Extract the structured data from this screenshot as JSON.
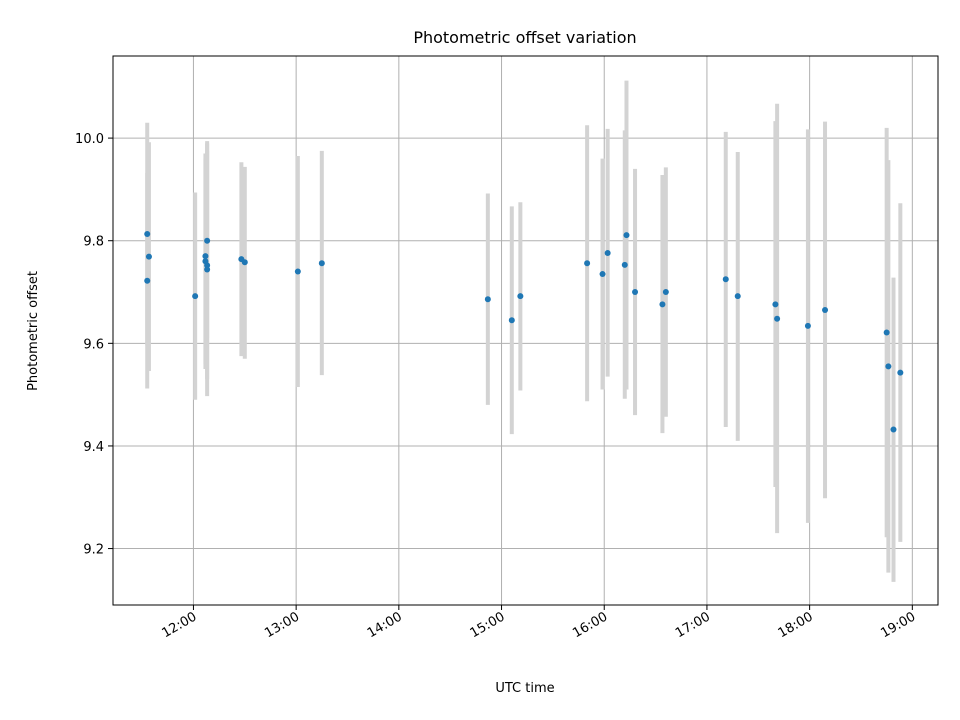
{
  "chart_data": {
    "type": "scatter",
    "title": "Photometric offset variation",
    "xlabel": "UTC time",
    "ylabel": "Photometric offset",
    "xlim": [
      "11:13",
      "19:15"
    ],
    "ylim": [
      9.09,
      10.16
    ],
    "x_ticks": [
      "12:00",
      "13:00",
      "14:00",
      "15:00",
      "16:00",
      "17:00",
      "18:00",
      "19:00"
    ],
    "y_ticks": [
      9.2,
      9.4,
      9.6,
      9.8,
      10.0
    ],
    "y_tick_labels": [
      "9.2",
      "9.4",
      "9.6",
      "9.8",
      "10.0"
    ],
    "grid": true,
    "marker_color": "#1f77b4",
    "errorbar_color": "#d3d3d3",
    "points": [
      {
        "t": "11:33",
        "y": 9.722,
        "lo": 9.512,
        "hi": 9.932
      },
      {
        "t": "11:33",
        "y": 9.813,
        "lo": 9.596,
        "hi": 10.03
      },
      {
        "t": "11:34",
        "y": 9.769,
        "lo": 9.546,
        "hi": 9.992
      },
      {
        "t": "12:01",
        "y": 9.692,
        "lo": 9.49,
        "hi": 9.894
      },
      {
        "t": "12:07",
        "y": 9.77,
        "lo": 9.55,
        "hi": 9.97
      },
      {
        "t": "12:07",
        "y": 9.76,
        "lo": 9.56,
        "hi": 9.96
      },
      {
        "t": "12:08",
        "y": 9.752,
        "lo": 9.53,
        "hi": 9.975
      },
      {
        "t": "12:08",
        "y": 9.744,
        "lo": 9.497,
        "hi": 9.99
      },
      {
        "t": "12:08",
        "y": 9.8,
        "lo": 9.61,
        "hi": 9.994
      },
      {
        "t": "12:28",
        "y": 9.764,
        "lo": 9.575,
        "hi": 9.953
      },
      {
        "t": "12:30",
        "y": 9.758,
        "lo": 9.57,
        "hi": 9.944
      },
      {
        "t": "13:01",
        "y": 9.74,
        "lo": 9.515,
        "hi": 9.965
      },
      {
        "t": "13:15",
        "y": 9.756,
        "lo": 9.538,
        "hi": 9.975
      },
      {
        "t": "14:52",
        "y": 9.686,
        "lo": 9.48,
        "hi": 9.892
      },
      {
        "t": "15:06",
        "y": 9.645,
        "lo": 9.423,
        "hi": 9.867
      },
      {
        "t": "15:11",
        "y": 9.692,
        "lo": 9.508,
        "hi": 9.875
      },
      {
        "t": "15:50",
        "y": 9.756,
        "lo": 9.487,
        "hi": 10.025
      },
      {
        "t": "15:59",
        "y": 9.735,
        "lo": 9.51,
        "hi": 9.96
      },
      {
        "t": "16:02",
        "y": 9.776,
        "lo": 9.535,
        "hi": 10.018
      },
      {
        "t": "16:12",
        "y": 9.753,
        "lo": 9.492,
        "hi": 10.015
      },
      {
        "t": "16:13",
        "y": 9.811,
        "lo": 9.51,
        "hi": 10.112
      },
      {
        "t": "16:18",
        "y": 9.7,
        "lo": 9.46,
        "hi": 9.94
      },
      {
        "t": "16:34",
        "y": 9.676,
        "lo": 9.425,
        "hi": 9.928
      },
      {
        "t": "16:36",
        "y": 9.7,
        "lo": 9.457,
        "hi": 9.943
      },
      {
        "t": "17:11",
        "y": 9.725,
        "lo": 9.437,
        "hi": 10.012
      },
      {
        "t": "17:18",
        "y": 9.692,
        "lo": 9.41,
        "hi": 9.973
      },
      {
        "t": "17:40",
        "y": 9.676,
        "lo": 9.32,
        "hi": 10.033
      },
      {
        "t": "17:41",
        "y": 9.648,
        "lo": 9.23,
        "hi": 10.067
      },
      {
        "t": "17:59",
        "y": 9.634,
        "lo": 9.25,
        "hi": 10.017
      },
      {
        "t": "18:09",
        "y": 9.665,
        "lo": 9.298,
        "hi": 10.032
      },
      {
        "t": "18:45",
        "y": 9.621,
        "lo": 9.222,
        "hi": 10.02
      },
      {
        "t": "18:46",
        "y": 9.555,
        "lo": 9.153,
        "hi": 9.957
      },
      {
        "t": "18:49",
        "y": 9.432,
        "lo": 9.135,
        "hi": 9.728
      },
      {
        "t": "18:53",
        "y": 9.543,
        "lo": 9.213,
        "hi": 9.873
      }
    ]
  }
}
